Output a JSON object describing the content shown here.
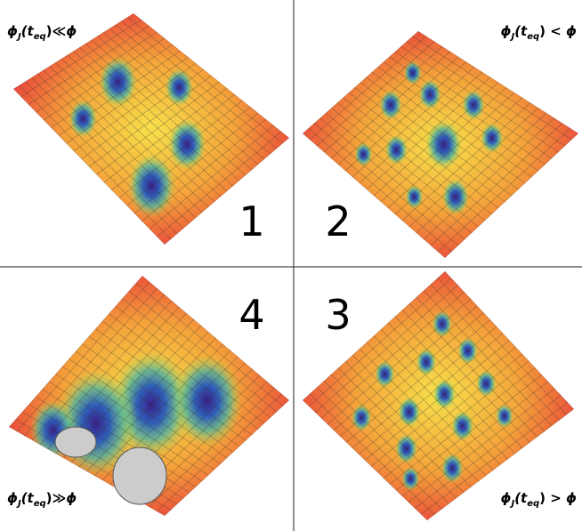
{
  "panels": [
    {
      "number": "1",
      "label": [
        "ϕ",
        "J",
        "(",
        "t",
        "eq",
        ")",
        "≪",
        "ϕ"
      ]
    },
    {
      "number": "2",
      "label": [
        "ϕ",
        "J",
        "(",
        "t",
        "eq",
        ")",
        " < ",
        "ϕ"
      ]
    },
    {
      "number": "4",
      "label": [
        "ϕ",
        "J",
        "(",
        "t",
        "eq",
        ")",
        "≫",
        "ϕ"
      ]
    },
    {
      "number": "3",
      "label": [
        "ϕ",
        "J",
        "(",
        "t",
        "eq",
        ")",
        " > ",
        "ϕ"
      ]
    }
  ]
}
